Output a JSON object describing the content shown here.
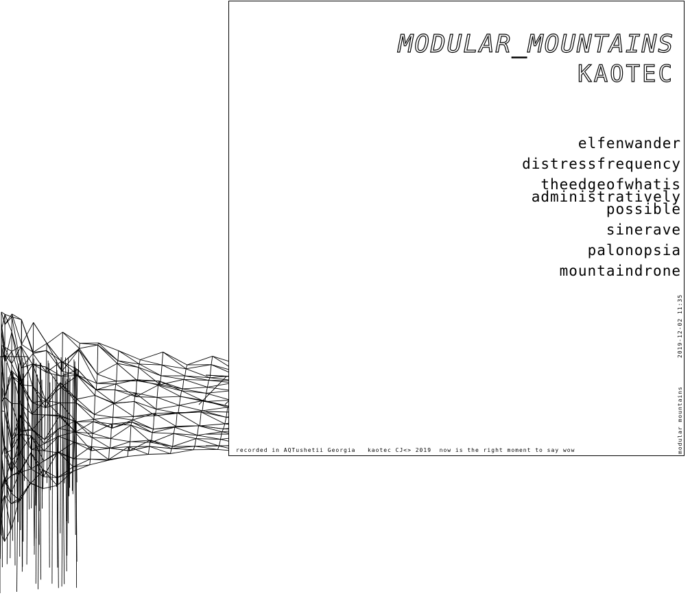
{
  "cover": {
    "title": "MODULAR_MOUNTAINS",
    "artist": "KAOTEC"
  },
  "tracklist": [
    "elfenwander",
    "distressfrequency",
    "theedgeofwhatis\nadministratively\npossible",
    "sinerave",
    "palonopsia",
    "mountaindrone"
  ],
  "footer": {
    "text": "recorded in AQTushetii Georgia   kaotec CJ<> 2019  now is the right moment to say wow"
  },
  "side": {
    "title": "modular mountains",
    "datetime": "2019-12-02 11:35"
  }
}
